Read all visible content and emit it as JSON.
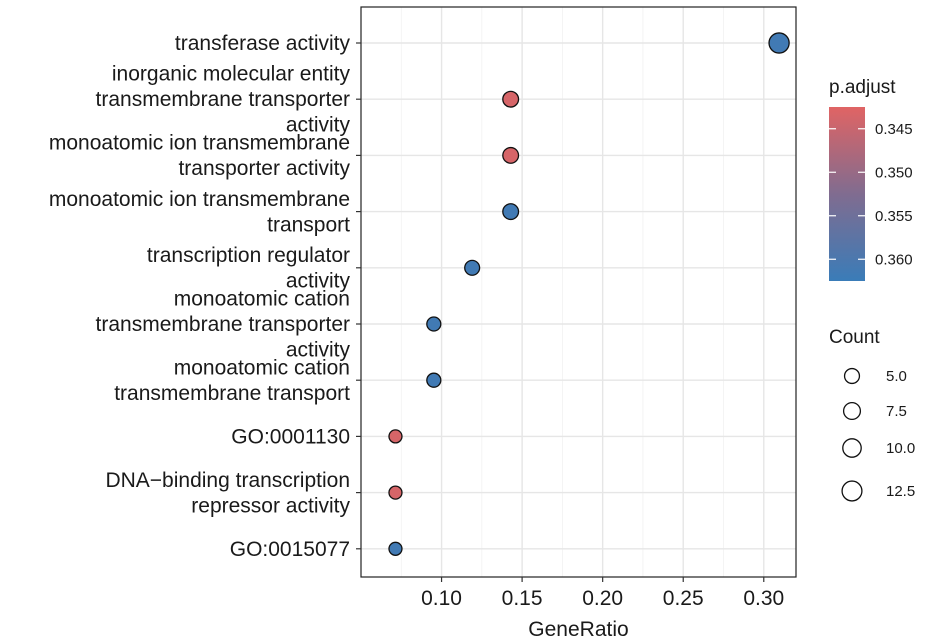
{
  "chart_data": {
    "type": "scatter",
    "xlabel": "GeneRatio",
    "ylabel": "",
    "xlim": [
      0.05,
      0.32
    ],
    "x_ticks": [
      0.1,
      0.15,
      0.2,
      0.25,
      0.3
    ],
    "x_tick_labels": [
      "0.10",
      "0.15",
      "0.20",
      "0.25",
      "0.30"
    ],
    "grid": true,
    "color_scale": {
      "name": "p.adjust",
      "low_color": "#e06464",
      "high_color": "#3a7cb8",
      "range": [
        0.3425,
        0.3625
      ],
      "ticks": [
        0.345,
        0.35,
        0.355,
        0.36
      ],
      "tick_labels": [
        "0.345",
        "0.350",
        "0.355",
        "0.360"
      ]
    },
    "size_scale": {
      "name": "Count",
      "values": [
        5.0,
        7.5,
        10.0,
        12.5
      ],
      "labels": [
        "5.0",
        "7.5",
        "10.0",
        "12.5"
      ]
    },
    "legend_position": "right",
    "categories": [
      {
        "label_lines": [
          "transferase activity"
        ],
        "gene_ratio": 0.3095,
        "count": 13,
        "p_adjust": 0.3615
      },
      {
        "label_lines": [
          "inorganic molecular entity",
          "transmembrane transporter",
          "activity"
        ],
        "gene_ratio": 0.1429,
        "count": 6,
        "p_adjust": 0.3435
      },
      {
        "label_lines": [
          "monoatomic ion transmembrane",
          "transporter activity"
        ],
        "gene_ratio": 0.1429,
        "count": 6,
        "p_adjust": 0.3435
      },
      {
        "label_lines": [
          "monoatomic ion transmembrane",
          "transport"
        ],
        "gene_ratio": 0.1429,
        "count": 6,
        "p_adjust": 0.3615
      },
      {
        "label_lines": [
          "transcription regulator",
          "activity"
        ],
        "gene_ratio": 0.119,
        "count": 5,
        "p_adjust": 0.3615
      },
      {
        "label_lines": [
          "monoatomic cation",
          "transmembrane transporter",
          "activity"
        ],
        "gene_ratio": 0.0952,
        "count": 4,
        "p_adjust": 0.3615
      },
      {
        "label_lines": [
          "monoatomic cation",
          "transmembrane transport"
        ],
        "gene_ratio": 0.0952,
        "count": 4,
        "p_adjust": 0.3615
      },
      {
        "label_lines": [
          "GO:0001130"
        ],
        "gene_ratio": 0.0714,
        "count": 3,
        "p_adjust": 0.3435
      },
      {
        "label_lines": [
          "DNA−binding transcription",
          "repressor activity"
        ],
        "gene_ratio": 0.0714,
        "count": 3,
        "p_adjust": 0.3435
      },
      {
        "label_lines": [
          "GO:0015077"
        ],
        "gene_ratio": 0.0714,
        "count": 3,
        "p_adjust": 0.3615
      }
    ]
  }
}
